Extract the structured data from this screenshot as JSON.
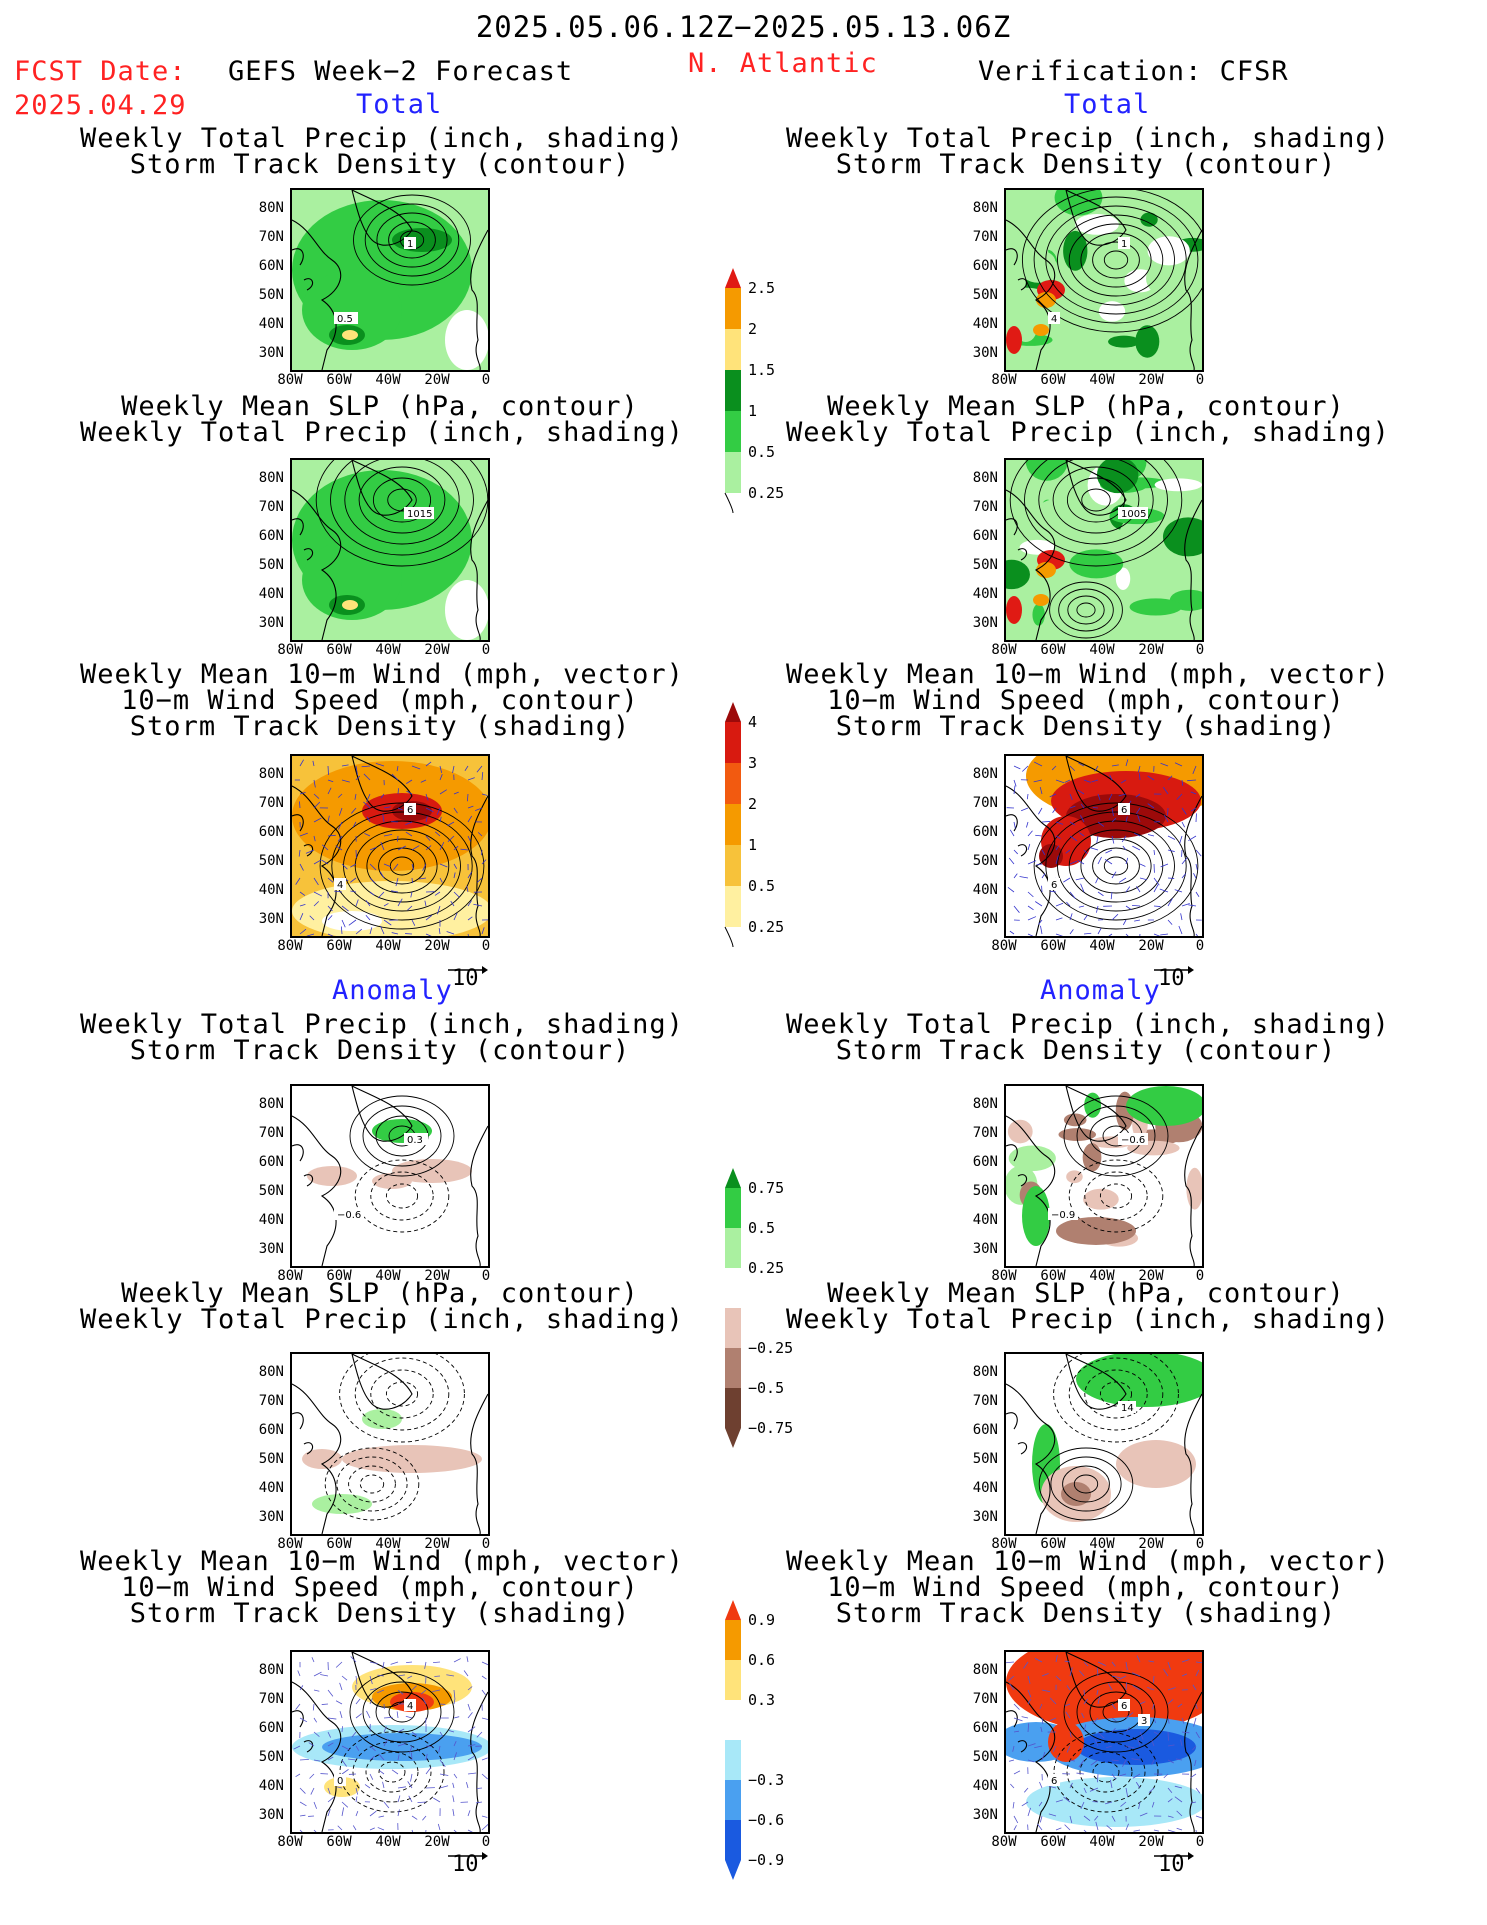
{
  "header": {
    "date_range": "2025.05.06.12Z−2025.05.13.06Z",
    "fcst_label": "FCST Date:",
    "fcst_date": "2025.04.29",
    "forecast_title": "GEFS Week−2 Forecast",
    "region": "N. Atlantic",
    "verification": "Verification: CFSR"
  },
  "sections": {
    "total": "Total",
    "anomaly": "Anomaly"
  },
  "panel_titles": {
    "precip_track": [
      "Weekly Total Precip (inch, shading)",
      "Storm Track Density (contour)"
    ],
    "slp_precip": [
      "Weekly Mean SLP (hPa, contour)",
      "Weekly Total Precip (inch, shading)"
    ],
    "wind": [
      "Weekly Mean 10−m Wind (mph, vector)",
      "10−m Wind Speed (mph, contour)",
      "Storm Track Density (shading)"
    ]
  },
  "axes": {
    "lat": [
      "80N",
      "70N",
      "60N",
      "50N",
      "40N",
      "30N"
    ],
    "lon": [
      "80W",
      "60W",
      "40W",
      "20W",
      "0"
    ]
  },
  "vector_ref": "10",
  "contour_labels": {
    "fc_precip_track": [
      "1",
      "0.5"
    ],
    "vf_precip_track": [
      "1",
      "4"
    ],
    "fc_slp": [
      "1015"
    ],
    "vf_slp": [
      "1005"
    ],
    "fc_wind": [
      "6",
      "4"
    ],
    "vf_wind": [
      "6",
      "6"
    ],
    "fc_anom_precip": [
      "0.3",
      "−0.6"
    ],
    "vf_anom_precip": [
      "−0.6",
      "−0.9"
    ],
    "vf_anom_slp": [
      "14"
    ],
    "fc_anom_wind": [
      "4",
      "0"
    ],
    "vf_anom_wind": [
      "6",
      "6",
      "3"
    ]
  },
  "colorbars": {
    "precip_total": {
      "labels": [
        "2.5",
        "2",
        "1.5",
        "1",
        "0.5",
        "0.25"
      ],
      "colors": [
        "#e01a14",
        "#f59a00",
        "#ffe37a",
        "#0a8f1e",
        "#33cc44",
        "#aaf0a0"
      ]
    },
    "track_total": {
      "labels": [
        "4",
        "3",
        "2",
        "1",
        "0.5",
        "0.25"
      ],
      "colors": [
        "#9c0a0a",
        "#d81a10",
        "#f25a10",
        "#f59a00",
        "#f7c23a",
        "#fff0a0"
      ]
    },
    "precip_anom": {
      "labels": [
        "0.75",
        "0.5",
        "0.25",
        "−0.25",
        "−0.5",
        "−0.75"
      ],
      "colors": [
        "#0a8f1e",
        "#33cc44",
        "#aaf0a0",
        "#ffffff",
        "#e8c4b8",
        "#b08070",
        "#6e4030"
      ]
    },
    "track_anom": {
      "labels": [
        "0.9",
        "0.6",
        "0.3",
        "−0.3",
        "−0.6",
        "−0.9"
      ],
      "colors": [
        "#f03a10",
        "#f59a00",
        "#ffe37a",
        "#ffffff",
        "#a8e8f8",
        "#4aa0f0",
        "#1a5ae0"
      ]
    }
  }
}
